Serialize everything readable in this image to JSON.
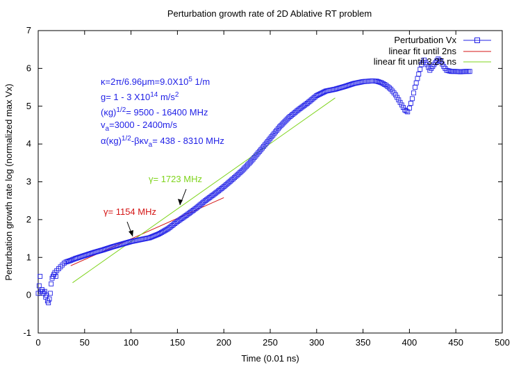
{
  "chart_data": {
    "type": "scatter",
    "title": "Perturbation growth rate of 2D Ablative RT problem",
    "xlabel": "Time (0.01 ns)",
    "ylabel": "Perturbation growth rate log (normalized max Vx)",
    "xlim": [
      0,
      500
    ],
    "ylim": [
      -1,
      7
    ],
    "x_ticks": [
      0,
      50,
      100,
      150,
      200,
      250,
      300,
      350,
      400,
      450,
      500
    ],
    "y_ticks": [
      -1,
      0,
      1,
      2,
      3,
      4,
      5,
      6,
      7
    ],
    "grid": false,
    "legend_position": "top-right",
    "colors": {
      "data": "#2020e6",
      "fit_2ns": "#d41414",
      "fit_325ns": "#7fd41c"
    },
    "series": [
      {
        "name": "Perturbation Vx",
        "style": "markers",
        "marker": "square",
        "color": "#2020e6",
        "points": [
          [
            0,
            0.05
          ],
          [
            1,
            0.25
          ],
          [
            2,
            0.5
          ],
          [
            3,
            0.1
          ],
          [
            4,
            0.15
          ],
          [
            5,
            0.1
          ],
          [
            6,
            0.05
          ],
          [
            7,
            0.1
          ],
          [
            8,
            -0.05
          ],
          [
            9,
            0.0
          ],
          [
            10,
            -0.15
          ],
          [
            11,
            -0.2
          ],
          [
            12,
            -0.1
          ],
          [
            13,
            0.05
          ],
          [
            14,
            0.3
          ],
          [
            15,
            0.45
          ],
          [
            16,
            0.5
          ],
          [
            17,
            0.55
          ],
          [
            18,
            0.6
          ],
          [
            19,
            0.5
          ],
          [
            20,
            0.65
          ],
          [
            22,
            0.7
          ],
          [
            24,
            0.75
          ],
          [
            26,
            0.8
          ],
          [
            28,
            0.85
          ],
          [
            30,
            0.88
          ],
          [
            35,
            0.92
          ],
          [
            40,
            0.97
          ],
          [
            50,
            1.05
          ],
          [
            60,
            1.13
          ],
          [
            70,
            1.2
          ],
          [
            80,
            1.28
          ],
          [
            90,
            1.35
          ],
          [
            100,
            1.42
          ],
          [
            110,
            1.47
          ],
          [
            120,
            1.52
          ],
          [
            130,
            1.62
          ],
          [
            140,
            1.76
          ],
          [
            150,
            1.95
          ],
          [
            160,
            2.12
          ],
          [
            170,
            2.3
          ],
          [
            180,
            2.5
          ],
          [
            190,
            2.68
          ],
          [
            200,
            2.87
          ],
          [
            210,
            3.08
          ],
          [
            220,
            3.3
          ],
          [
            230,
            3.56
          ],
          [
            240,
            3.85
          ],
          [
            250,
            4.15
          ],
          [
            260,
            4.45
          ],
          [
            270,
            4.7
          ],
          [
            280,
            4.9
          ],
          [
            290,
            5.08
          ],
          [
            300,
            5.28
          ],
          [
            310,
            5.4
          ],
          [
            320,
            5.45
          ],
          [
            330,
            5.52
          ],
          [
            340,
            5.6
          ],
          [
            350,
            5.65
          ],
          [
            360,
            5.67
          ],
          [
            365,
            5.66
          ],
          [
            370,
            5.62
          ],
          [
            375,
            5.55
          ],
          [
            380,
            5.45
          ],
          [
            385,
            5.3
          ],
          [
            390,
            5.1
          ],
          [
            395,
            4.9
          ],
          [
            398,
            4.85
          ],
          [
            400,
            4.95
          ],
          [
            403,
            5.2
          ],
          [
            406,
            5.5
          ],
          [
            410,
            5.85
          ],
          [
            413,
            6.1
          ],
          [
            416,
            6.22
          ],
          [
            419,
            6.1
          ],
          [
            422,
            5.95
          ],
          [
            425,
            6.05
          ],
          [
            428,
            6.15
          ],
          [
            431,
            6.25
          ],
          [
            434,
            6.18
          ],
          [
            437,
            6.05
          ],
          [
            440,
            5.95
          ],
          [
            445,
            5.92
          ],
          [
            450,
            5.92
          ],
          [
            455,
            5.91
          ],
          [
            460,
            5.92
          ],
          [
            465,
            5.92
          ]
        ]
      },
      {
        "name": "linear fit until 2ns",
        "style": "line",
        "color": "#d41414",
        "points": [
          [
            35,
            0.78
          ],
          [
            200,
            2.58
          ]
        ]
      },
      {
        "name": "linear fit until 3.25 ns",
        "style": "line",
        "color": "#7fd41c",
        "points": [
          [
            37,
            0.33
          ],
          [
            320,
            5.22
          ]
        ]
      }
    ],
    "annotations": {
      "params": [
        {
          "base": "κ=2π/6.96μm=9.0X10",
          "sup": "5",
          "tail": " 1/m"
        },
        {
          "base": "g= 1 - 3 X10",
          "sup": "14",
          "tail": " m/s",
          "sup2": "2"
        },
        {
          "base": "(κg)",
          "sup": "1/2",
          "tail": "= 9500 - 16400  MHz"
        },
        {
          "base": "v",
          "sub": "a",
          "tail": "=3000 - 2400m/s"
        },
        {
          "base": "α(κg)",
          "sup": "1/2",
          "tail": "-βκv",
          "sub2": "a",
          "tail2": "= 438 - 8310  MHz"
        }
      ],
      "gamma_red": "γ= 1154 MHz",
      "gamma_green": "γ= 1723 MHz"
    }
  }
}
